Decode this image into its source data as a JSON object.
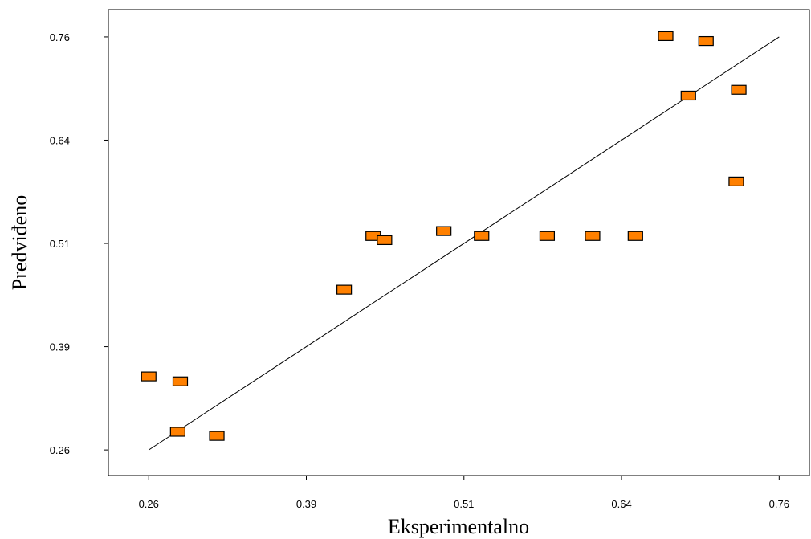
{
  "chart_data": {
    "type": "scatter",
    "x_label": "Eksperimentalno",
    "y_label": "Predviđeno",
    "series": [
      {
        "color": "#ff8000",
        "x": [
          0.26,
          0.285,
          0.283,
          0.314,
          0.415,
          0.438,
          0.447,
          0.494,
          0.524,
          0.576,
          0.612,
          0.646,
          0.67,
          0.702,
          0.688,
          0.728,
          0.726
        ],
        "values": [
          0.349,
          0.343,
          0.282,
          0.277,
          0.454,
          0.519,
          0.514,
          0.525,
          0.519,
          0.519,
          0.519,
          0.519,
          0.761,
          0.755,
          0.689,
          0.696,
          0.585
        ]
      }
    ],
    "fit_line": {
      "x": [
        0.26,
        0.76
      ],
      "values": [
        0.26,
        0.76
      ]
    },
    "xlim": [
      0.228,
      0.784
    ],
    "ylim": [
      0.229,
      0.793
    ],
    "xticks": [
      0.26,
      {
        "value": 0.385,
        "label": "0.39"
      },
      0.51,
      {
        "value": 0.635,
        "label": "0.64"
      },
      0.76
    ],
    "yticks": [
      0.26,
      {
        "value": 0.385,
        "label": "0.39"
      },
      0.51,
      {
        "value": 0.635,
        "label": "0.64"
      },
      0.76
    ]
  }
}
